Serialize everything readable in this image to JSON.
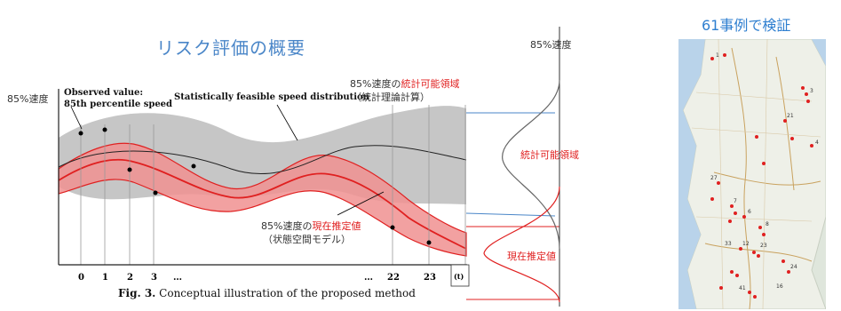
{
  "diagram": {
    "title": "リスク評価の概要",
    "y_label": "85%速度",
    "observed_label_line1": "Observed value:",
    "observed_label_line2": "85th percentile speed",
    "feasible_label": "Statistically feasible speed distribution",
    "feasible_region_prefix": "85%速度の",
    "feasible_region_red": "統計可能領域",
    "feasible_region_sub": "（統計理論計算）",
    "estimate_prefix": "85%速度の",
    "estimate_red": "現在推定値",
    "estimate_sub": "（状態空間モデル）",
    "x_ticks": [
      "0",
      "1",
      "2",
      "3",
      "…",
      "…",
      "22",
      "23",
      "(t)"
    ],
    "caption_bold": "Fig. 3.",
    "caption_text": " Conceptual illustration of the proposed method",
    "right_axis_label": "85%速度",
    "right_region_feasible": "統計可能領域",
    "right_region_estimate": "現在推定値",
    "colors": {
      "accent_blue": "#4a86c8",
      "red": "#e02020",
      "gray_band": "#c8c8c8"
    }
  },
  "map_panel": {
    "title": "61事例で検証",
    "case_numbers": [
      "1",
      "3",
      "21",
      "4",
      "27",
      "7",
      "6",
      "8",
      "23",
      "12",
      "33",
      "24",
      "41",
      "16"
    ]
  }
}
